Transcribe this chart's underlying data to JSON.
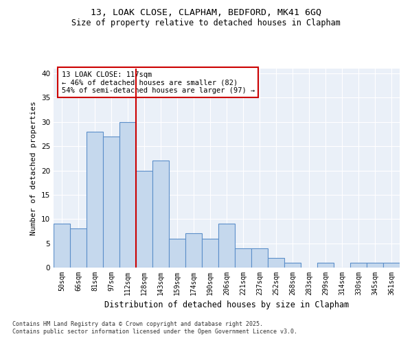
{
  "title_line1": "13, LOAK CLOSE, CLAPHAM, BEDFORD, MK41 6GQ",
  "title_line2": "Size of property relative to detached houses in Clapham",
  "xlabel": "Distribution of detached houses by size in Clapham",
  "ylabel": "Number of detached properties",
  "categories": [
    "50sqm",
    "66sqm",
    "81sqm",
    "97sqm",
    "112sqm",
    "128sqm",
    "143sqm",
    "159sqm",
    "174sqm",
    "190sqm",
    "206sqm",
    "221sqm",
    "237sqm",
    "252sqm",
    "268sqm",
    "283sqm",
    "299sqm",
    "314sqm",
    "330sqm",
    "345sqm",
    "361sqm"
  ],
  "values": [
    9,
    8,
    28,
    27,
    30,
    20,
    22,
    6,
    7,
    6,
    9,
    4,
    4,
    2,
    1,
    0,
    1,
    0,
    1,
    1,
    1
  ],
  "bar_color": "#c5d8ed",
  "bar_edgecolor": "#5b8fc9",
  "background_color": "#eaf0f8",
  "grid_color": "#ffffff",
  "vline_x": 4.5,
  "vline_color": "#cc0000",
  "annotation_text": "13 LOAK CLOSE: 117sqm\n← 46% of detached houses are smaller (82)\n54% of semi-detached houses are larger (97) →",
  "annotation_box_edgecolor": "#cc0000",
  "ylim": [
    0,
    41
  ],
  "yticks": [
    0,
    5,
    10,
    15,
    20,
    25,
    30,
    35,
    40
  ],
  "footnote": "Contains HM Land Registry data © Crown copyright and database right 2025.\nContains public sector information licensed under the Open Government Licence v3.0."
}
